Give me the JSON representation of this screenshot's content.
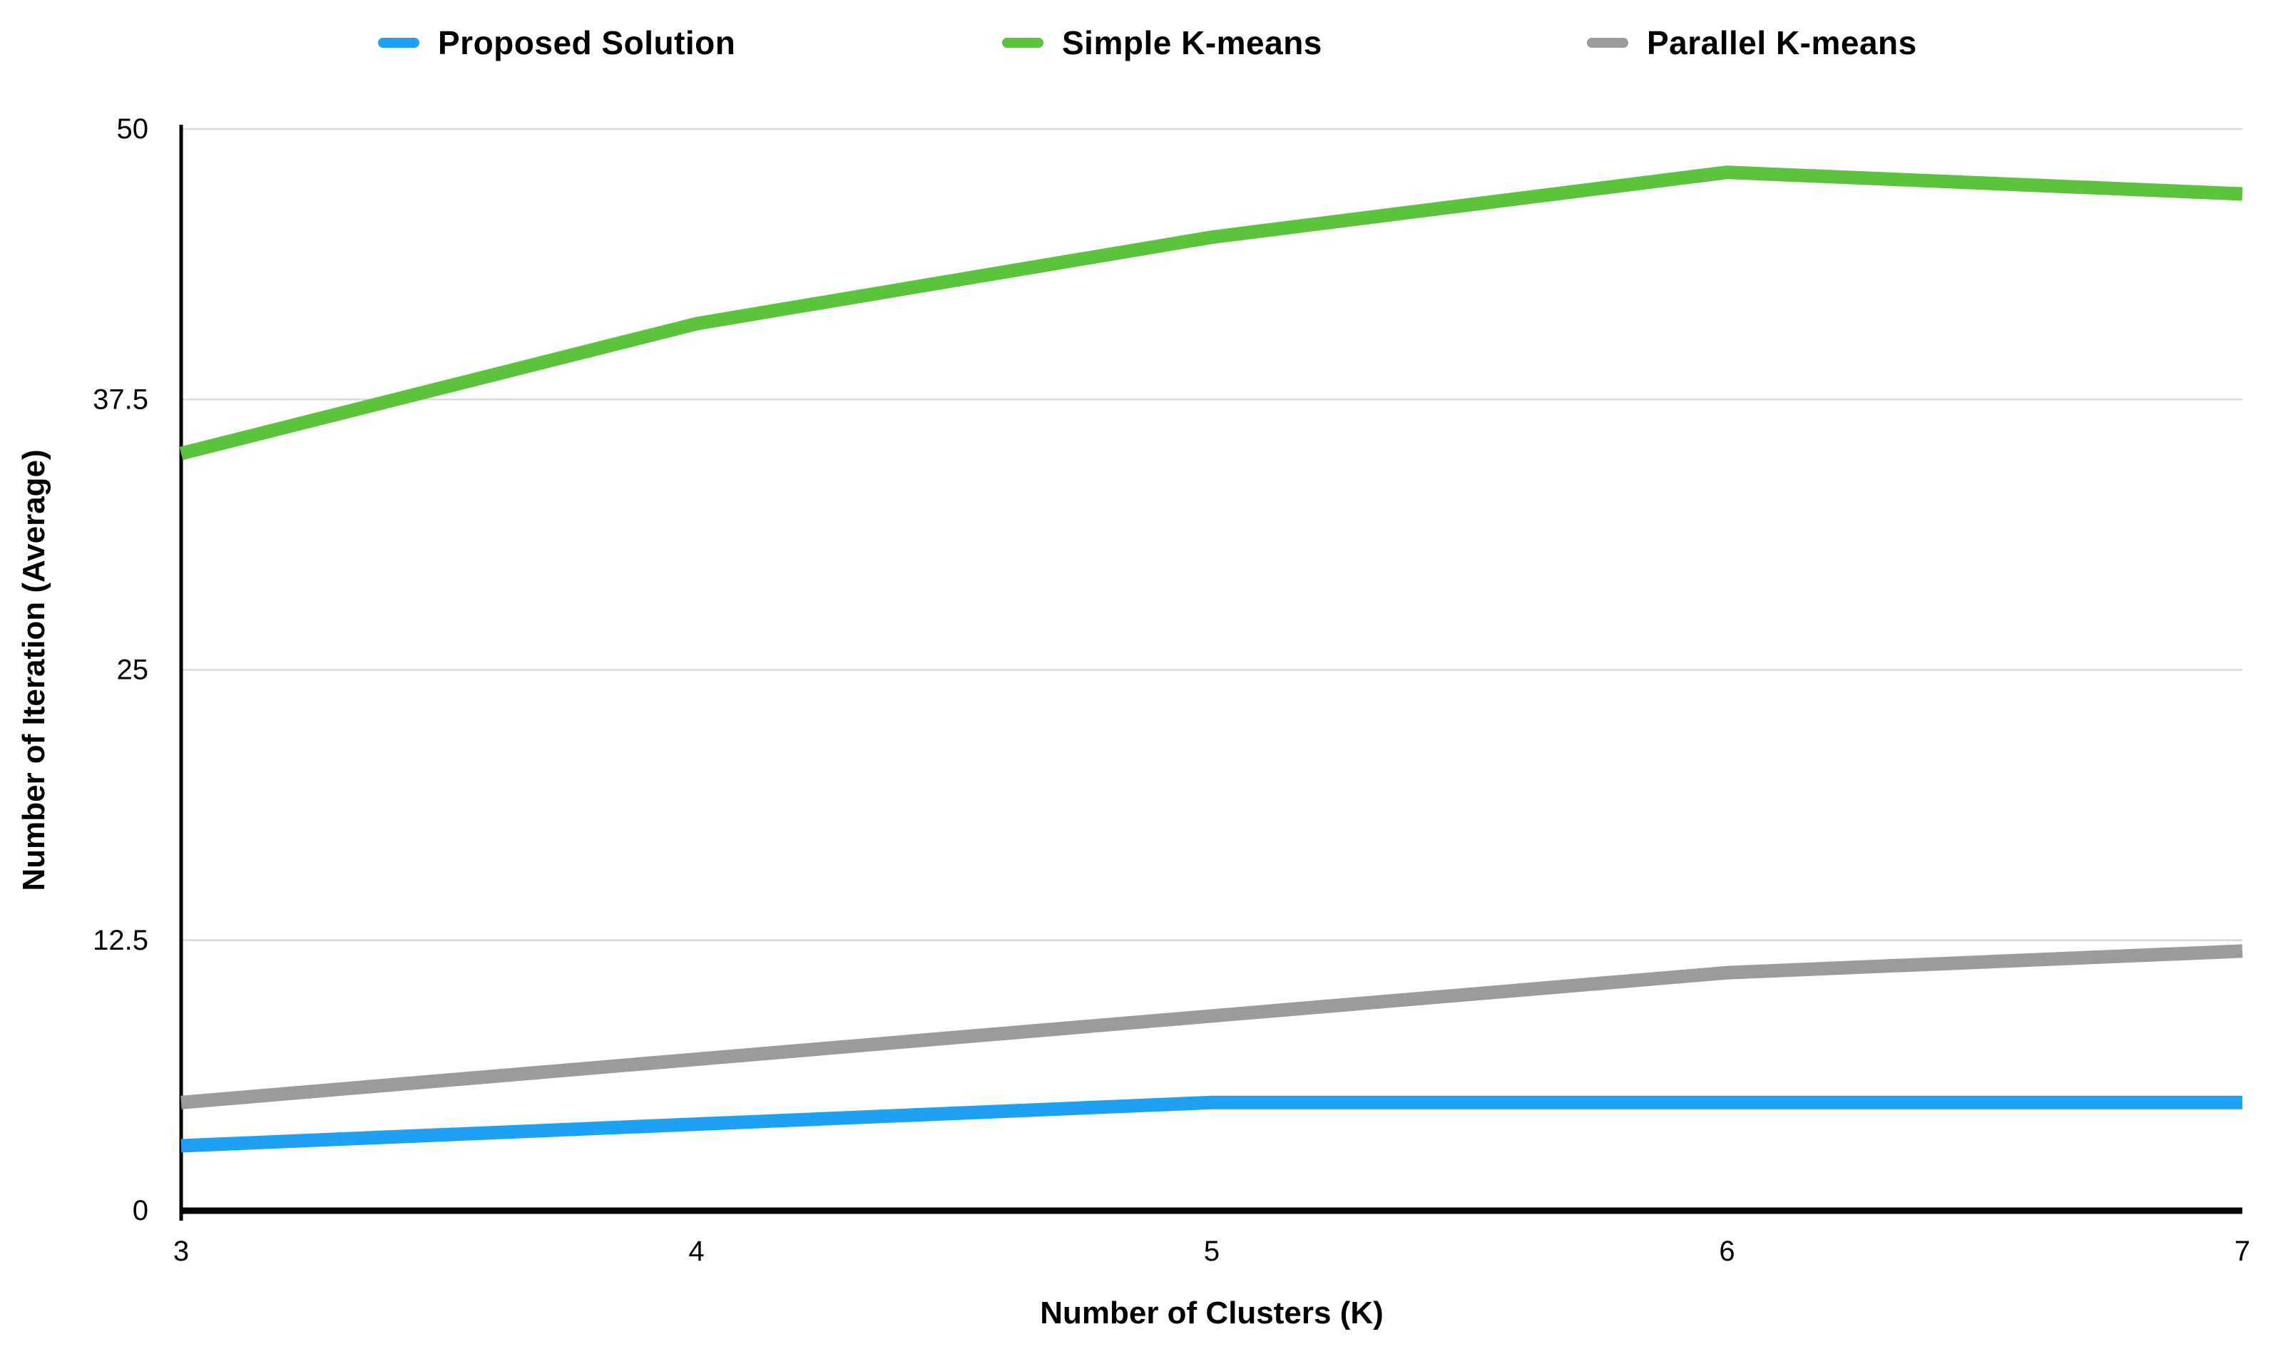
{
  "page": {
    "background_color": "#FFFFFF",
    "text_color": "#000000"
  },
  "chart_data": {
    "type": "line",
    "title": "",
    "xlabel": "Number of Clusters (K)",
    "ylabel": "Number of Iteration (Average)",
    "x": [
      3,
      4,
      5,
      6,
      7
    ],
    "x_tick_labels": [
      "3",
      "4",
      "5",
      "6",
      "7"
    ],
    "xlim": [
      3,
      7
    ],
    "y_ticks": [
      0,
      12.5,
      25,
      37.5,
      50
    ],
    "y_tick_labels": [
      "0",
      "12.5",
      "25",
      "37.5",
      "50"
    ],
    "ylim": [
      0,
      50
    ],
    "grid": "horizontal",
    "legend_position": "top",
    "series": [
      {
        "name": "Proposed Solution",
        "color": "#1EA0F3",
        "values": [
          3,
          4,
          5,
          5,
          5
        ]
      },
      {
        "name": "Simple K-means",
        "color": "#5BC43C",
        "values": [
          35,
          41,
          45,
          48,
          47
        ]
      },
      {
        "name": "Parallel K-means",
        "color": "#9B9B9B",
        "values": [
          5,
          7,
          9,
          11,
          12
        ]
      }
    ],
    "style": {
      "line_width": 19,
      "grid_color": "#DADADA",
      "axis_color": "#000000",
      "tick_font_size": 40,
      "axis_label_font_size": 44,
      "legend_font_size": 46
    }
  }
}
